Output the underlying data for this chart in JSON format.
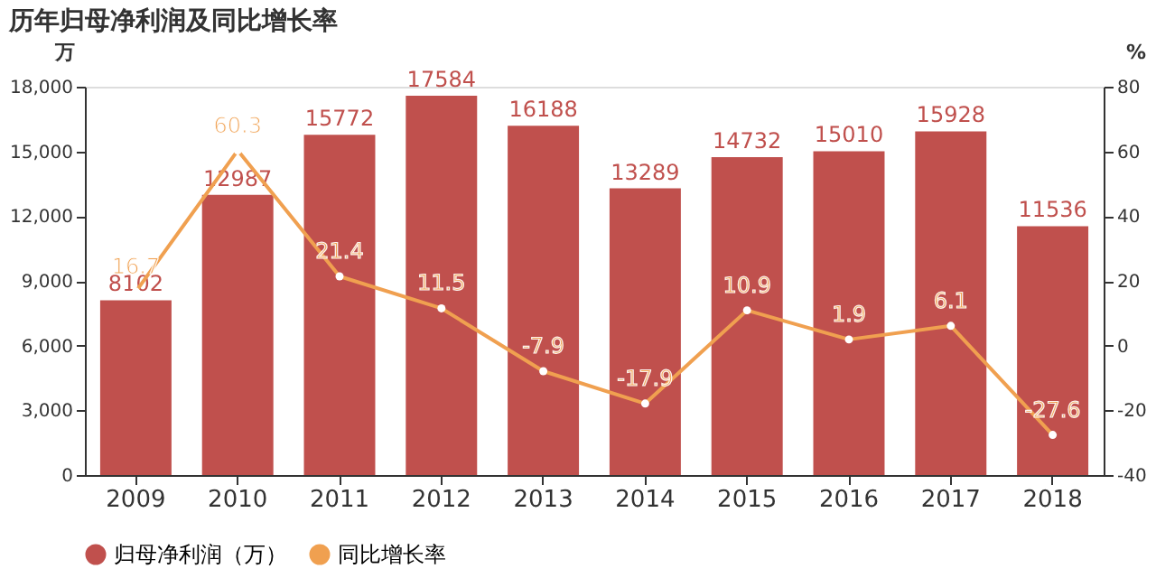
{
  "chart_data": {
    "type": "bar",
    "title": "历年归母净利润及同比增长率",
    "ylabel": "万",
    "y2label": "%",
    "categories": [
      "2009",
      "2010",
      "2011",
      "2012",
      "2013",
      "2014",
      "2015",
      "2016",
      "2017",
      "2018"
    ],
    "series": [
      {
        "name": "归母净利润（万）",
        "color": "#c0504d",
        "values": [
          8102,
          12987,
          15772,
          17584,
          16188,
          13289,
          14732,
          15010,
          15928,
          11536
        ]
      },
      {
        "name": "同比增长率",
        "type": "line",
        "axis": "y2",
        "color": "#f0a050",
        "values": [
          16.7,
          60.3,
          21.4,
          11.5,
          -7.9,
          -17.9,
          10.9,
          1.9,
          6.1,
          -27.6
        ]
      }
    ],
    "ylim": [
      0,
      18000
    ],
    "yticks": [
      0,
      {
        "value": 3000,
        "label": "3,000"
      },
      {
        "value": 6000,
        "label": "6,000"
      },
      {
        "value": 9000,
        "label": "9,000"
      },
      {
        "value": 12000,
        "label": "12,000"
      },
      {
        "value": 15000,
        "label": "15,000"
      },
      {
        "value": 18000,
        "label": "18,000"
      }
    ],
    "y2lim": [
      -40,
      80
    ],
    "y2ticks": [
      -40,
      -20,
      0,
      20,
      40,
      60,
      80
    ],
    "data_labels": true,
    "legend": "bottom",
    "marker": "circle",
    "grid": false
  }
}
